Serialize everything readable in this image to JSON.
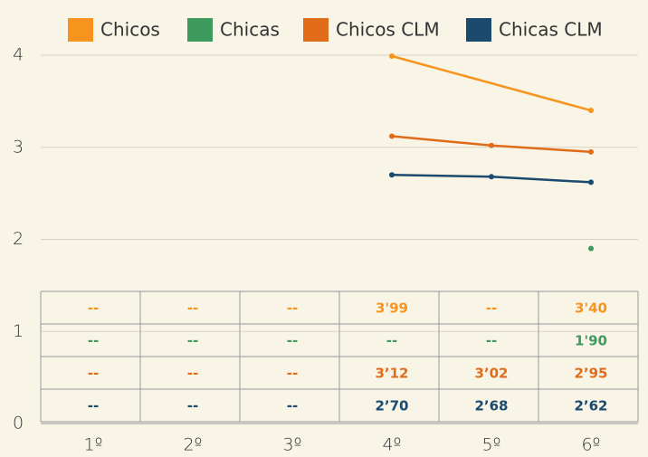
{
  "chart_data": {
    "type": "line",
    "categories": [
      "1º",
      "2º",
      "3º",
      "4º",
      "5º",
      "6º"
    ],
    "series": [
      {
        "name": "Chicos",
        "color": "#f7941d",
        "values": [
          null,
          null,
          null,
          3.99,
          null,
          3.4
        ],
        "value_labels": [
          "--",
          "--",
          "--",
          "3'99",
          "--",
          "3'40"
        ]
      },
      {
        "name": "Chicas",
        "color": "#3f9a5e",
        "values": [
          null,
          null,
          null,
          null,
          null,
          1.9
        ],
        "value_labels": [
          "--",
          "--",
          "--",
          "--",
          "--",
          "1'90"
        ]
      },
      {
        "name": "Chicos CLM",
        "color": "#e06c1a",
        "values": [
          null,
          null,
          null,
          3.12,
          3.02,
          2.95
        ],
        "value_labels": [
          "--",
          "--",
          "--",
          "3’12",
          "3’02",
          "2’95"
        ]
      },
      {
        "name": "Chicas CLM",
        "color": "#1a4a6e",
        "values": [
          null,
          null,
          null,
          2.7,
          2.68,
          2.62
        ],
        "value_labels": [
          "--",
          "--",
          "--",
          "2’70",
          "2’68",
          "2’62"
        ]
      }
    ],
    "ylim": [
      0,
      4
    ],
    "yticks": [
      0,
      1,
      2,
      3,
      4
    ],
    "grid": true,
    "span_gaps": true,
    "legend": "top"
  }
}
